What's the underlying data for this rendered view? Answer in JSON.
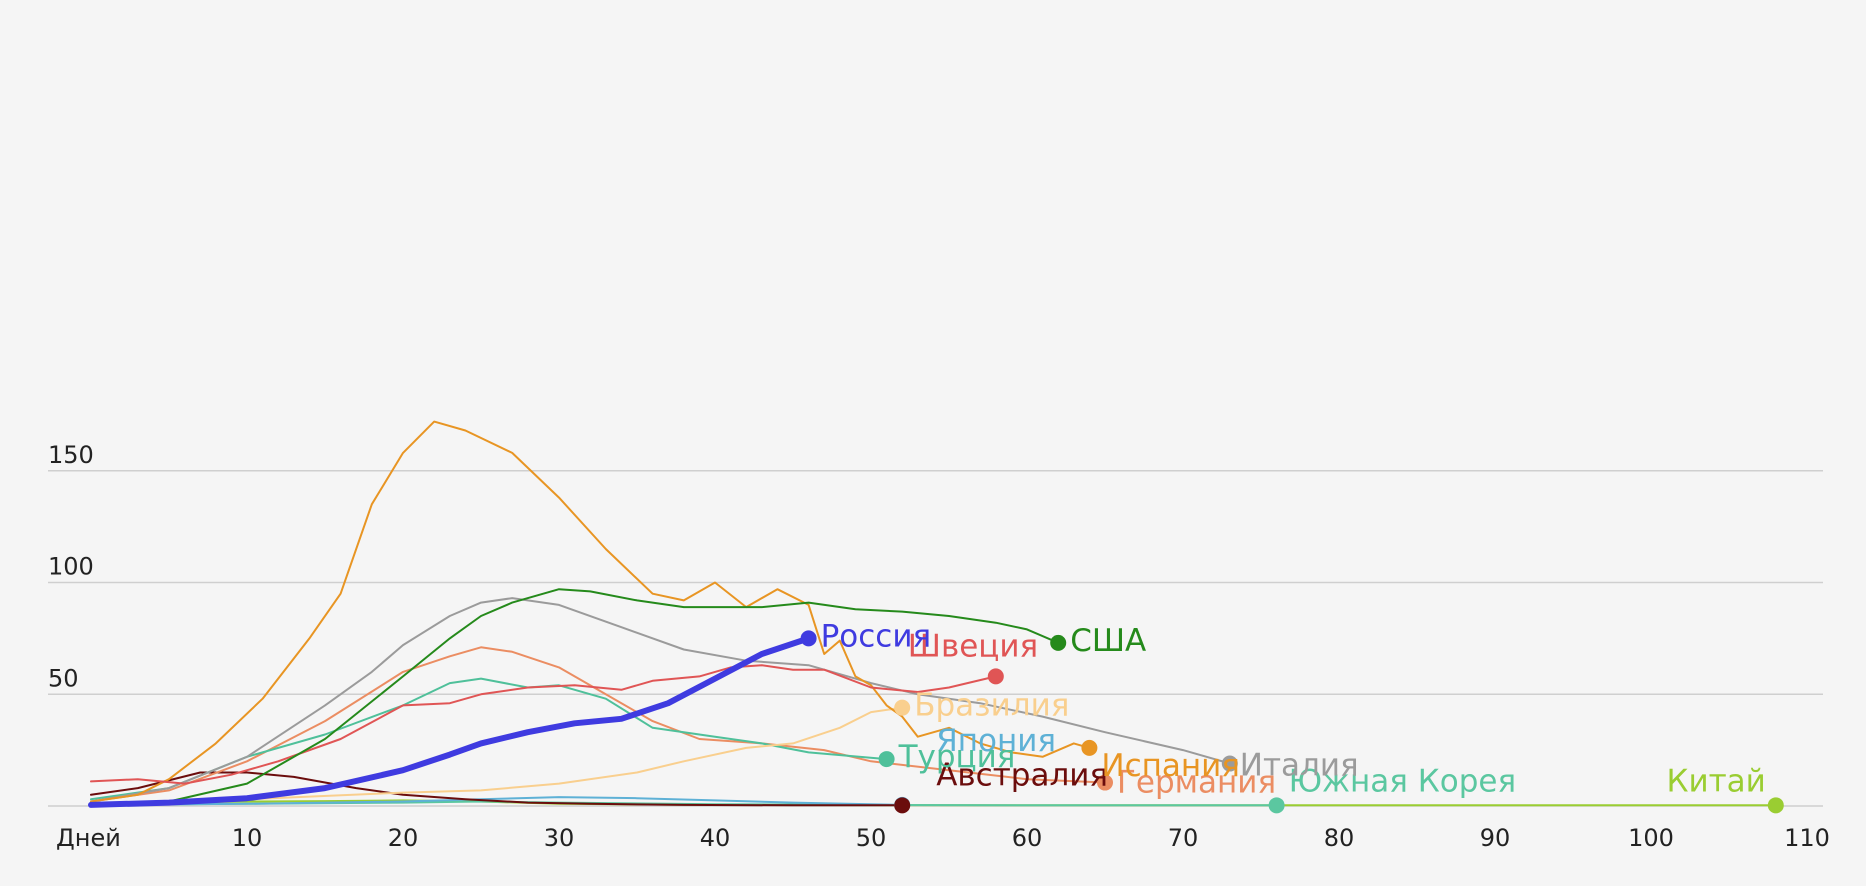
{
  "chart_data": {
    "type": "line",
    "x_axis_label": "Дней",
    "x_ticks": [
      10,
      20,
      30,
      40,
      50,
      60,
      70,
      80,
      90,
      100,
      110
    ],
    "y_ticks": [
      50,
      100,
      150
    ],
    "xlim": [
      0,
      110
    ],
    "ylim": [
      0,
      175
    ],
    "grid": true,
    "series": [
      {
        "name": "Китай",
        "color": "#9acd32",
        "points": [
          [
            0,
            1
          ],
          [
            5,
            1.5
          ],
          [
            10,
            2
          ],
          [
            15,
            2.2
          ],
          [
            20,
            2.5
          ],
          [
            25,
            2
          ],
          [
            30,
            1
          ],
          [
            40,
            0.5
          ],
          [
            60,
            0.3
          ],
          [
            80,
            0.3
          ],
          [
            108,
            0.3
          ]
        ]
      },
      {
        "name": "Южная Корея",
        "color": "#5bc7a0",
        "points": [
          [
            0,
            0.5
          ],
          [
            10,
            1
          ],
          [
            20,
            1.5
          ],
          [
            25,
            2
          ],
          [
            30,
            1.5
          ],
          [
            40,
            0.8
          ],
          [
            50,
            0.5
          ],
          [
            60,
            0.3
          ],
          [
            76,
            0.3
          ]
        ]
      },
      {
        "name": "Япония",
        "color": "#5eb1d6",
        "points": [
          [
            0,
            0.5
          ],
          [
            10,
            1
          ],
          [
            20,
            2
          ],
          [
            25,
            3
          ],
          [
            30,
            4
          ],
          [
            35,
            3.5
          ],
          [
            40,
            2.5
          ],
          [
            45,
            1.5
          ],
          [
            50,
            0.8
          ],
          [
            52,
            0.5
          ]
        ]
      },
      {
        "name": "Австралия",
        "color": "#6b0d0d",
        "points": [
          [
            0,
            5
          ],
          [
            3,
            8
          ],
          [
            7,
            15
          ],
          [
            10,
            15
          ],
          [
            13,
            13
          ],
          [
            17,
            8
          ],
          [
            20,
            5
          ],
          [
            24,
            3
          ],
          [
            28,
            1.5
          ],
          [
            32,
            1
          ],
          [
            38,
            0.5
          ],
          [
            45,
            0.3
          ],
          [
            52,
            0.3
          ]
        ]
      },
      {
        "name": "Германия",
        "color": "#eb8d62",
        "points": [
          [
            0,
            2
          ],
          [
            5,
            7
          ],
          [
            10,
            20
          ],
          [
            15,
            38
          ],
          [
            20,
            60
          ],
          [
            23,
            67
          ],
          [
            25,
            71
          ],
          [
            27,
            69
          ],
          [
            30,
            62
          ],
          [
            33,
            50
          ],
          [
            36,
            38
          ],
          [
            39,
            30
          ],
          [
            43,
            28
          ],
          [
            47,
            25
          ],
          [
            50,
            20
          ],
          [
            55,
            16
          ],
          [
            60,
            12
          ],
          [
            65,
            10.5
          ]
        ]
      },
      {
        "name": "Турция",
        "color": "#4fc09a",
        "points": [
          [
            0,
            3
          ],
          [
            5,
            8
          ],
          [
            10,
            22
          ],
          [
            15,
            32
          ],
          [
            20,
            45
          ],
          [
            23,
            55
          ],
          [
            25,
            57
          ],
          [
            28,
            53
          ],
          [
            30,
            54
          ],
          [
            33,
            48
          ],
          [
            36,
            35
          ],
          [
            40,
            31
          ],
          [
            43,
            28
          ],
          [
            46,
            24
          ],
          [
            51,
            21
          ]
        ]
      },
      {
        "name": "Бразилия",
        "color": "#f9cf8e",
        "points": [
          [
            0,
            1
          ],
          [
            10,
            3
          ],
          [
            20,
            6
          ],
          [
            25,
            7
          ],
          [
            30,
            10
          ],
          [
            35,
            15
          ],
          [
            38,
            20
          ],
          [
            42,
            26
          ],
          [
            45,
            28
          ],
          [
            48,
            35
          ],
          [
            50,
            42
          ],
          [
            52,
            44
          ]
        ]
      },
      {
        "name": "Италия",
        "color": "#9b9b9b",
        "points": [
          [
            0,
            2
          ],
          [
            5,
            8
          ],
          [
            10,
            22
          ],
          [
            15,
            45
          ],
          [
            18,
            60
          ],
          [
            20,
            72
          ],
          [
            23,
            85
          ],
          [
            25,
            91
          ],
          [
            27,
            93
          ],
          [
            30,
            90
          ],
          [
            34,
            80
          ],
          [
            38,
            70
          ],
          [
            42,
            65
          ],
          [
            46,
            63
          ],
          [
            50,
            55
          ],
          [
            53,
            50
          ],
          [
            57,
            46
          ],
          [
            61,
            40
          ],
          [
            65,
            33
          ],
          [
            70,
            25
          ],
          [
            73,
            19
          ]
        ]
      },
      {
        "name": "Испания",
        "color": "#e89523",
        "points": [
          [
            0,
            2
          ],
          [
            3,
            5
          ],
          [
            5,
            12
          ],
          [
            8,
            28
          ],
          [
            11,
            48
          ],
          [
            14,
            75
          ],
          [
            16,
            95
          ],
          [
            18,
            135
          ],
          [
            20,
            158
          ],
          [
            22,
            172
          ],
          [
            24,
            168
          ],
          [
            27,
            158
          ],
          [
            30,
            138
          ],
          [
            33,
            115
          ],
          [
            36,
            95
          ],
          [
            38,
            92
          ],
          [
            40,
            100
          ],
          [
            42,
            89
          ],
          [
            44,
            97
          ],
          [
            46,
            90
          ],
          [
            47,
            68
          ],
          [
            48,
            74
          ],
          [
            49,
            58
          ],
          [
            50,
            54
          ],
          [
            51,
            45
          ],
          [
            52,
            40
          ],
          [
            53,
            31
          ],
          [
            55,
            35
          ],
          [
            57,
            28
          ],
          [
            59,
            24
          ],
          [
            61,
            22
          ],
          [
            63,
            28
          ],
          [
            64,
            26
          ]
        ]
      },
      {
        "name": "Швеция",
        "color": "#e05555",
        "points": [
          [
            0,
            11
          ],
          [
            3,
            12
          ],
          [
            6,
            10
          ],
          [
            9,
            14
          ],
          [
            12,
            20
          ],
          [
            16,
            30
          ],
          [
            20,
            45
          ],
          [
            23,
            46
          ],
          [
            25,
            50
          ],
          [
            28,
            53
          ],
          [
            31,
            54
          ],
          [
            34,
            52
          ],
          [
            36,
            56
          ],
          [
            39,
            58
          ],
          [
            41,
            62
          ],
          [
            43,
            63
          ],
          [
            45,
            61
          ],
          [
            47,
            61
          ],
          [
            50,
            53
          ],
          [
            53,
            51
          ],
          [
            55,
            53
          ],
          [
            58,
            58
          ]
        ]
      },
      {
        "name": "США",
        "color": "#258a1b",
        "points": [
          [
            0,
            0
          ],
          [
            5,
            2
          ],
          [
            10,
            10
          ],
          [
            15,
            30
          ],
          [
            20,
            58
          ],
          [
            23,
            75
          ],
          [
            25,
            85
          ],
          [
            27,
            91
          ],
          [
            30,
            97
          ],
          [
            32,
            96
          ],
          [
            35,
            92
          ],
          [
            38,
            89
          ],
          [
            40,
            89
          ],
          [
            43,
            89
          ],
          [
            46,
            91
          ],
          [
            49,
            88
          ],
          [
            52,
            87
          ],
          [
            55,
            85
          ],
          [
            58,
            82
          ],
          [
            60,
            79
          ],
          [
            62,
            73
          ]
        ]
      },
      {
        "name": "Россия",
        "color": "#3f3be0",
        "bold": true,
        "points": [
          [
            0,
            0.5
          ],
          [
            5,
            1.5
          ],
          [
            10,
            3.5
          ],
          [
            15,
            8
          ],
          [
            20,
            16
          ],
          [
            23,
            23
          ],
          [
            25,
            28
          ],
          [
            28,
            33
          ],
          [
            31,
            37
          ],
          [
            34,
            39
          ],
          [
            37,
            46
          ],
          [
            40,
            57
          ],
          [
            43,
            68
          ],
          [
            46,
            75
          ]
        ]
      }
    ]
  }
}
